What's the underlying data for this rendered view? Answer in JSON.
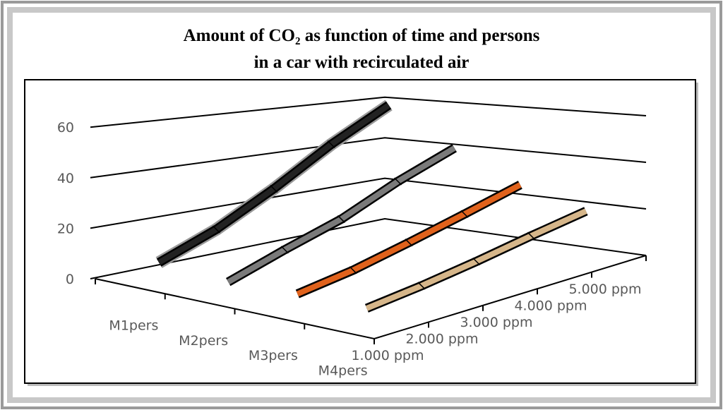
{
  "chart_data": {
    "type": "line3d",
    "title": [
      "Amount of CO₂ as function of time and persons",
      "in a car with recirculated air"
    ],
    "categories": [
      "1.000 ppm",
      "2.000 ppm",
      "3.000 ppm",
      "4.000 ppm",
      "5.000 ppm"
    ],
    "series": [
      {
        "name": "M1pers",
        "color": "#222222",
        "values": [
          7,
          16,
          29,
          45,
          60
        ]
      },
      {
        "name": "M2pers",
        "color": "#7a7a7a",
        "values": [
          5,
          13,
          21,
          33,
          44
        ]
      },
      {
        "name": "M3pers",
        "color": "#e0621c",
        "values": [
          6,
          10,
          16,
          23,
          31
        ]
      },
      {
        "name": "M4pers",
        "color": "#d6b68a",
        "values": [
          6,
          9,
          13,
          18,
          23
        ]
      }
    ],
    "ylim": [
      0,
      60
    ],
    "yticks": [
      0,
      20,
      40,
      60
    ],
    "grid": true
  }
}
